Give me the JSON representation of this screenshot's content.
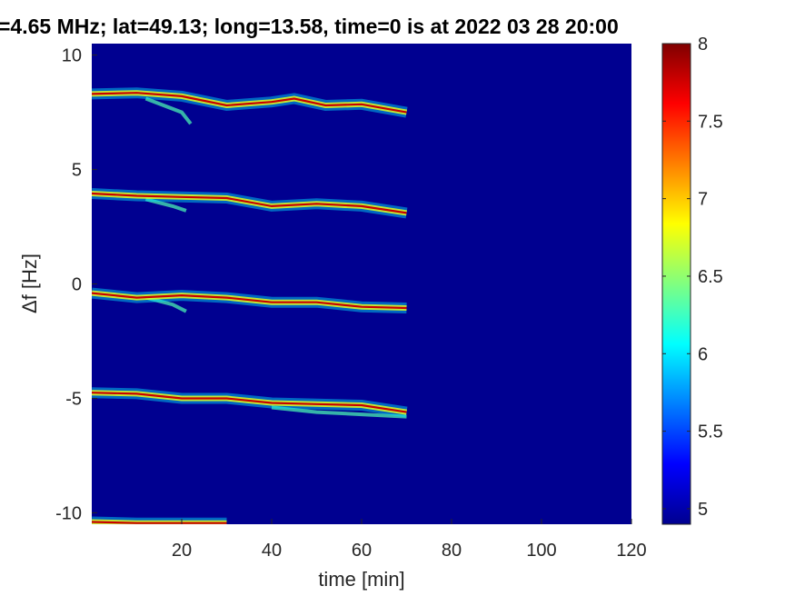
{
  "chart_data": {
    "type": "heatmap",
    "title": "=4.65 MHz;  lat=49.13; long=13.58, time=0 is at 2022 03 28 20:00",
    "xlabel": "time [min]",
    "ylabel": "Δf [Hz]",
    "xlim": [
      0,
      120
    ],
    "ylim": [
      -10.5,
      10.5
    ],
    "x_ticks": [
      "20",
      "40",
      "60",
      "80",
      "100",
      "120"
    ],
    "y_ticks": [
      "10",
      "5",
      "0",
      "-5",
      "-10"
    ],
    "colorbar": {
      "colormap": "jet",
      "range": [
        4.9,
        8
      ],
      "ticks": [
        "8",
        "7.5",
        "7",
        "6.5",
        "6",
        "5.5",
        "5"
      ]
    },
    "background_value": 4.95,
    "traces": [
      {
        "points": [
          [
            0,
            8.3
          ],
          [
            10,
            8.35
          ],
          [
            20,
            8.2
          ],
          [
            30,
            7.8
          ],
          [
            40,
            7.95
          ],
          [
            45,
            8.1
          ],
          [
            52,
            7.8
          ],
          [
            60,
            7.85
          ],
          [
            70,
            7.5
          ]
        ],
        "branch": [
          [
            12,
            8.1
          ],
          [
            20,
            7.5
          ],
          [
            22,
            7.0
          ]
        ]
      },
      {
        "points": [
          [
            0,
            3.95
          ],
          [
            10,
            3.85
          ],
          [
            20,
            3.8
          ],
          [
            30,
            3.75
          ],
          [
            40,
            3.4
          ],
          [
            50,
            3.5
          ],
          [
            60,
            3.4
          ],
          [
            70,
            3.1
          ]
        ],
        "branch": [
          [
            12,
            3.7
          ],
          [
            18,
            3.4
          ],
          [
            21,
            3.2
          ]
        ]
      },
      {
        "points": [
          [
            0,
            -0.4
          ],
          [
            10,
            -0.6
          ],
          [
            20,
            -0.5
          ],
          [
            30,
            -0.6
          ],
          [
            40,
            -0.8
          ],
          [
            50,
            -0.8
          ],
          [
            60,
            -1.0
          ],
          [
            70,
            -1.05
          ]
        ],
        "branch": [
          [
            12,
            -0.6
          ],
          [
            18,
            -0.9
          ],
          [
            21,
            -1.2
          ]
        ]
      },
      {
        "points": [
          [
            0,
            -4.75
          ],
          [
            10,
            -4.8
          ],
          [
            20,
            -5.0
          ],
          [
            30,
            -5.0
          ],
          [
            40,
            -5.2
          ],
          [
            50,
            -5.25
          ],
          [
            60,
            -5.3
          ],
          [
            70,
            -5.6
          ]
        ],
        "branch": [
          [
            40,
            -5.4
          ],
          [
            50,
            -5.6
          ],
          [
            60,
            -5.7
          ],
          [
            70,
            -5.8
          ]
        ]
      },
      {
        "points": [
          [
            0,
            -10.4
          ],
          [
            10,
            -10.45
          ],
          [
            20,
            -10.45
          ],
          [
            30,
            -10.45
          ]
        ],
        "branch": []
      }
    ]
  }
}
